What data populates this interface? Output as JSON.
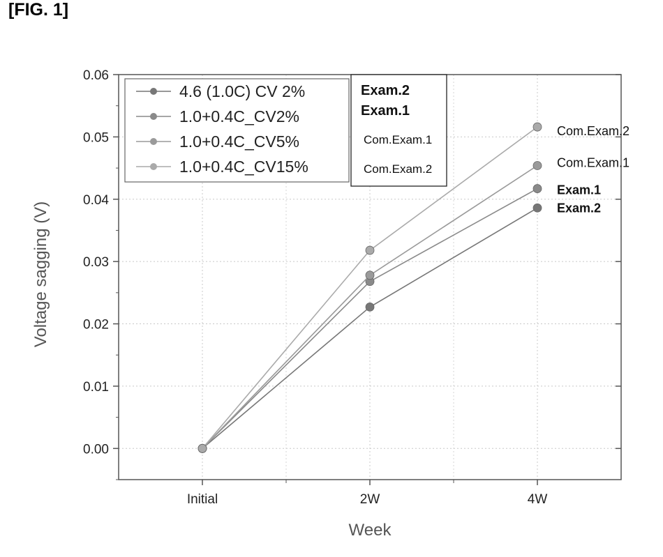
{
  "figure_label": "[FIG. 1]",
  "chart_data": {
    "type": "line",
    "categories": [
      "Initial",
      "2W",
      "4W"
    ],
    "series": [
      {
        "name": "4.6 (1.0C) CV 2%",
        "values": [
          0.0,
          0.0227,
          0.0386
        ],
        "color": "#777777"
      },
      {
        "name": "1.0+0.4C_CV2%",
        "values": [
          0.0,
          0.0268,
          0.0417
        ],
        "color": "#8a8a8a"
      },
      {
        "name": "1.0+0.4C_CV5%",
        "values": [
          0.0,
          0.0278,
          0.0454
        ],
        "color": "#9a9a9a"
      },
      {
        "name": "1.0+0.4C_CV15%",
        "values": [
          0.0,
          0.0318,
          0.0516
        ],
        "color": "#aaaaaa"
      }
    ],
    "xlabel": "Week",
    "ylabel": "Voltage sagging (V)",
    "ylim": [
      -0.005,
      0.06
    ],
    "yticks": [
      "0.00",
      "0.01",
      "0.02",
      "0.03",
      "0.04",
      "0.05",
      "0.06"
    ],
    "grid": true,
    "legend_position": "top-left",
    "annotation_box": [
      "Exam.2",
      "Exam.1",
      "Com.Exam.1",
      "Com.Exam.2"
    ],
    "end_labels": [
      "Exam.2",
      "Exam.1",
      "Com.Exam.1",
      "Com.Exam.2"
    ]
  }
}
